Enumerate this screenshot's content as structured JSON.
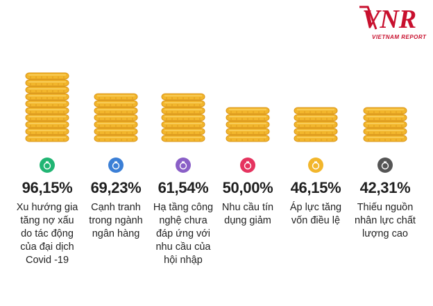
{
  "brand": {
    "logo_text": "VNR",
    "sub_text": "VIETNAM REPORT"
  },
  "colors": {
    "coin_face": "#f2b62c",
    "coin_edge": "#d9951b",
    "coin_highlight": "#f9d264",
    "icon_green": "#21b573",
    "icon_blue": "#3b7fd6",
    "icon_purple": "#8a5fc7",
    "icon_pink": "#e5335f",
    "icon_yellow": "#f2b62c",
    "icon_gray": "#555555",
    "brand_red": "#c8102e"
  },
  "chart_data": {
    "type": "bar",
    "categories": [
      "Xu hướng gia tăng nợ xấu do tác động của đại dịch Covid -19",
      "Cạnh tranh trong ngành ngân hàng",
      "Hạ tầng công nghệ chưa đáp ứng với nhu cầu của hội nhập",
      "Nhu cầu tín dụng giảm",
      "Áp lực tăng vốn điều lệ",
      "Thiếu nguồn nhân lực chất lượng cao"
    ],
    "values": [
      96.15,
      69.23,
      61.54,
      50.0,
      46.15,
      42.31
    ],
    "value_labels": [
      "96,15%",
      "69,23%",
      "61,54%",
      "50,00%",
      "46,15%",
      "42,31%"
    ],
    "label_lines": [
      [
        "Xu hướng gia",
        "tăng nợ xấu",
        "do tác động",
        "của đại dịch",
        "Covid -19"
      ],
      [
        "Cạnh tranh",
        "trong ngành",
        "ngân hàng"
      ],
      [
        "Hạ tầng công",
        "nghệ chưa",
        "đáp ứng với",
        "nhu cầu của",
        "hội nhập"
      ],
      [
        "Nhu cầu tín",
        "dụng giảm"
      ],
      [
        "Áp lực tăng",
        "vốn điều lệ"
      ],
      [
        "Thiếu nguồn",
        "nhân lực chất",
        "lượng cao"
      ]
    ],
    "icons": [
      "money-bag-icon",
      "people-group-icon",
      "network-icon",
      "credit-card-icon",
      "coin-bag-icon",
      "person-icon"
    ],
    "icon_colors": [
      "#21b573",
      "#3b7fd6",
      "#8a5fc7",
      "#e5335f",
      "#f2b62c",
      "#555555"
    ],
    "ylim": [
      0,
      100
    ]
  }
}
